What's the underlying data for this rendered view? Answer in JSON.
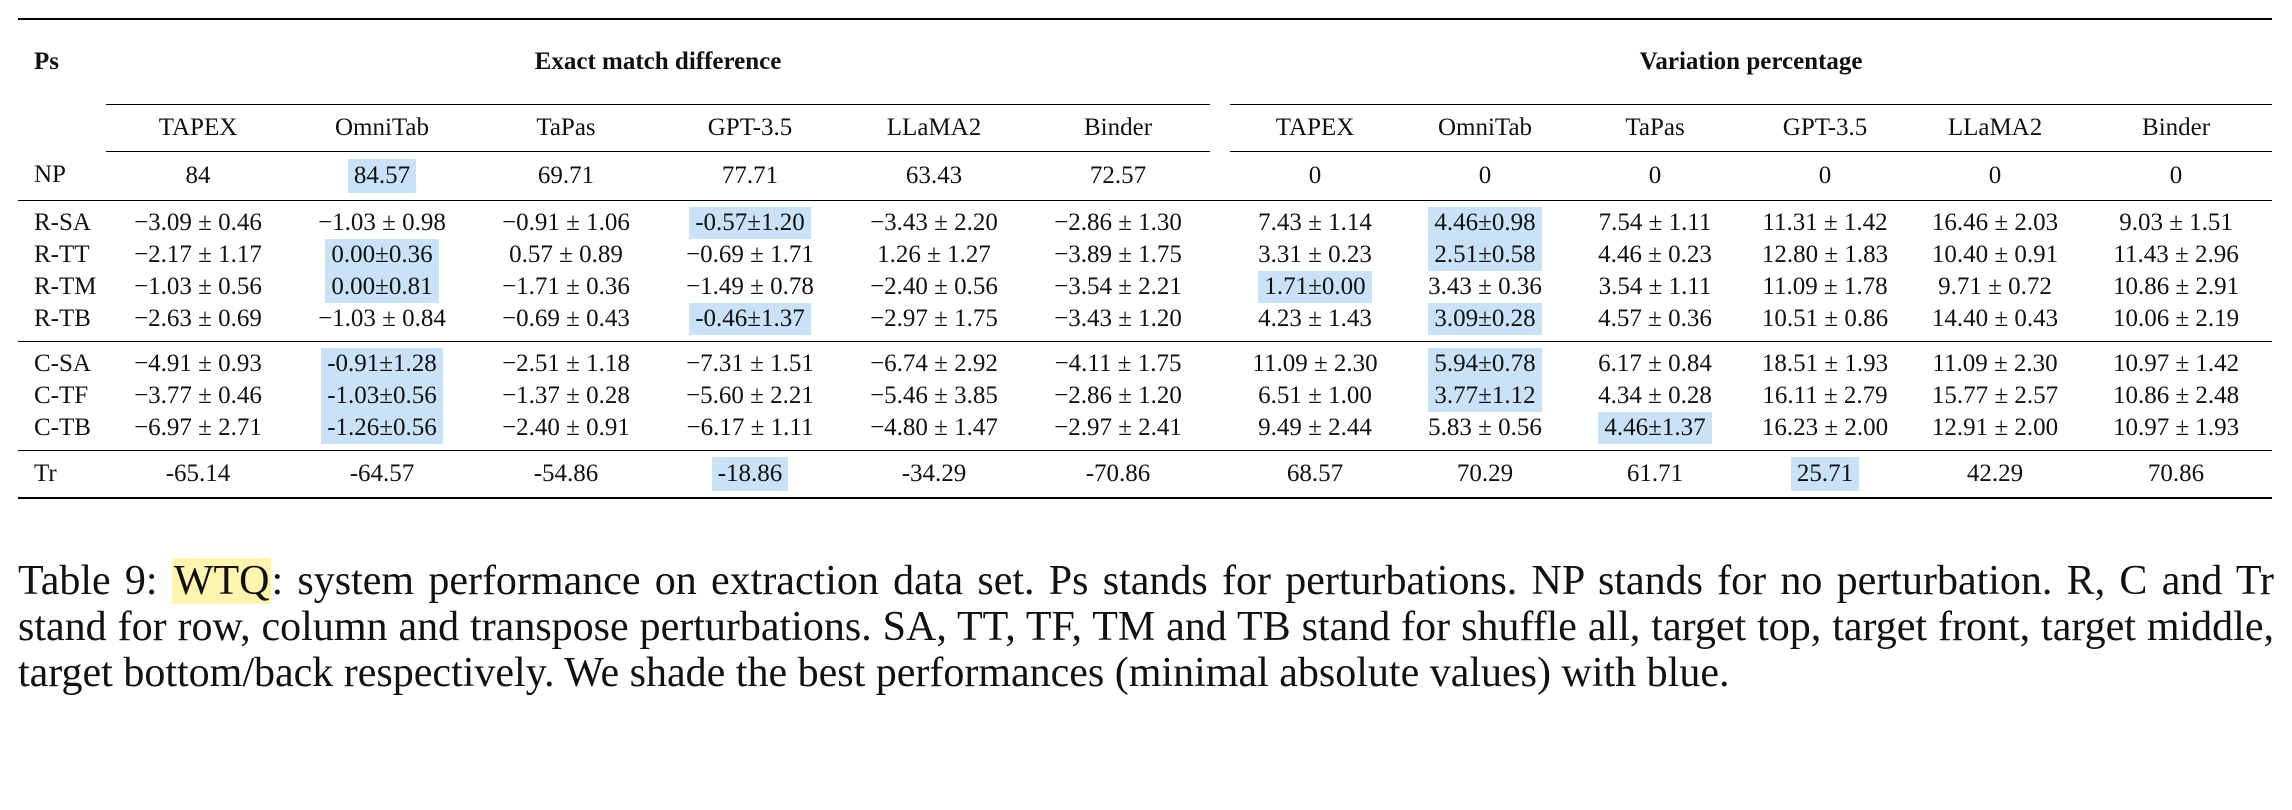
{
  "table": {
    "ps_label": "Ps",
    "groups": [
      "Exact match difference",
      "Variation percentage"
    ],
    "models": [
      "TAPEX",
      "OmniTab",
      "TaPas",
      "GPT-3.5",
      "LLaMA2",
      "Binder"
    ],
    "rows": [
      {
        "label": "NP",
        "values": [
          "84",
          "84.57",
          "69.71",
          "77.71",
          "63.43",
          "72.57",
          "0",
          "0",
          "0",
          "0",
          "0",
          "0"
        ],
        "highlight": [
          1
        ]
      },
      {
        "label": "R-SA",
        "values": [
          "−3.09 ± 0.46",
          "−1.03 ± 0.98",
          "−0.91 ± 1.06",
          "-0.57±1.20",
          "−3.43 ± 2.20",
          "−2.86 ± 1.30",
          "7.43 ± 1.14",
          "4.46±0.98",
          "7.54 ± 1.11",
          "11.31 ± 1.42",
          "16.46 ± 2.03",
          "9.03 ± 1.51"
        ],
        "highlight": [
          3,
          7
        ]
      },
      {
        "label": "R-TT",
        "values": [
          "−2.17 ± 1.17",
          "0.00±0.36",
          "0.57 ± 0.89",
          "−0.69 ± 1.71",
          "1.26 ± 1.27",
          "−3.89 ± 1.75",
          "3.31 ± 0.23",
          "2.51±0.58",
          "4.46 ± 0.23",
          "12.80 ± 1.83",
          "10.40 ± 0.91",
          "11.43 ± 2.96"
        ],
        "highlight": [
          1,
          7
        ]
      },
      {
        "label": "R-TM",
        "values": [
          "−1.03 ± 0.56",
          "0.00±0.81",
          "−1.71 ± 0.36",
          "−1.49 ± 0.78",
          "−2.40 ± 0.56",
          "−3.54 ± 2.21",
          "1.71±0.00",
          "3.43 ± 0.36",
          "3.54 ± 1.11",
          "11.09 ± 1.78",
          "9.71 ± 0.72",
          "10.86 ± 2.91"
        ],
        "highlight": [
          1,
          6
        ]
      },
      {
        "label": "R-TB",
        "values": [
          "−2.63 ± 0.69",
          "−1.03 ± 0.84",
          "−0.69 ± 0.43",
          "-0.46±1.37",
          "−2.97 ± 1.75",
          "−3.43 ± 1.20",
          "4.23 ± 1.43",
          "3.09±0.28",
          "4.57 ± 0.36",
          "10.51 ± 0.86",
          "14.40 ± 0.43",
          "10.06 ± 2.19"
        ],
        "highlight": [
          3,
          7
        ]
      },
      {
        "label": "C-SA",
        "values": [
          "−4.91 ± 0.93",
          "-0.91±1.28",
          "−2.51 ± 1.18",
          "−7.31 ± 1.51",
          "−6.74 ± 2.92",
          "−4.11 ± 1.75",
          "11.09 ± 2.30",
          "5.94±0.78",
          "6.17 ± 0.84",
          "18.51 ± 1.93",
          "11.09 ± 2.30",
          "10.97 ± 1.42"
        ],
        "highlight": [
          1,
          7
        ]
      },
      {
        "label": "C-TF",
        "values": [
          "−3.77 ± 0.46",
          "-1.03±0.56",
          "−1.37 ± 0.28",
          "−5.60 ± 2.21",
          "−5.46 ± 3.85",
          "−2.86 ± 1.20",
          "6.51 ± 1.00",
          "3.77±1.12",
          "4.34 ± 0.28",
          "16.11 ± 2.79",
          "15.77 ± 2.57",
          "10.86 ± 2.48"
        ],
        "highlight": [
          1,
          7
        ]
      },
      {
        "label": "C-TB",
        "values": [
          "−6.97 ± 2.71",
          "-1.26±0.56",
          "−2.40 ± 0.91",
          "−6.17 ± 1.11",
          "−4.80 ± 1.47",
          "−2.97 ± 2.41",
          "9.49 ± 2.44",
          "5.83 ± 0.56",
          "4.46±1.37",
          "16.23 ± 2.00",
          "12.91 ± 2.00",
          "10.97 ± 1.93"
        ],
        "highlight": [
          1,
          8
        ]
      },
      {
        "label": "Tr",
        "values": [
          "-65.14",
          "-64.57",
          "-54.86",
          "-18.86",
          "-34.29",
          "-70.86",
          "68.57",
          "70.29",
          "61.71",
          "25.71",
          "42.29",
          "70.86"
        ],
        "highlight": [
          3,
          9
        ]
      }
    ]
  },
  "caption": {
    "prefix": "Table 9: ",
    "tag": "WTQ",
    "text": ": system performance on extraction data set. Ps stands for perturbations. NP stands for no perturbation. R, C and Tr stand for row, column and transpose perturbations. SA, TT, TF, TM and TB stand for shuffle all, target top, target front, target middle, target bottom/back respectively. We shade the best performances (minimal absolute values) with blue."
  },
  "colors": {
    "highlight_blue": "#c9e2f8",
    "tag_yellow": "#fff3b0"
  }
}
